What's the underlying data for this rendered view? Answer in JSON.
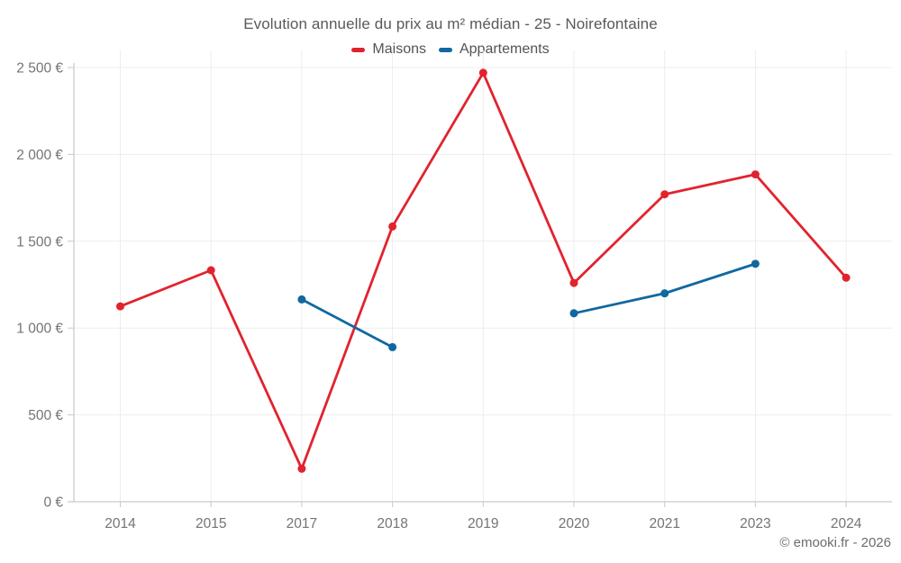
{
  "title": "Evolution annuelle du prix au m² médian - 25 - Noirefontaine",
  "footer": "© emooki.fr - 2026",
  "colors": {
    "maisons": "#e1232e",
    "appartements": "#0f68a0",
    "axis": "#c9c9c9",
    "grid": "#ededed",
    "tick_text": "#747474",
    "title_text": "#595959"
  },
  "chart_data": {
    "type": "line",
    "categories": [
      "2014",
      "2015",
      "2017",
      "2018",
      "2019",
      "2020",
      "2021",
      "2023",
      "2024"
    ],
    "series": [
      {
        "name": "Maisons",
        "color": "#e1232e",
        "values": [
          1125,
          1333,
          190,
          1585,
          2470,
          1260,
          1770,
          1885,
          1290
        ]
      },
      {
        "name": "Appartements",
        "color": "#0f68a0",
        "values": [
          null,
          null,
          1165,
          890,
          null,
          1085,
          1200,
          1370,
          null
        ]
      }
    ],
    "yticks": [
      {
        "value": 0,
        "label": "0 €"
      },
      {
        "value": 500,
        "label": "500 €"
      },
      {
        "value": 1000,
        "label": "1 000 €"
      },
      {
        "value": 1500,
        "label": "1 500 €"
      },
      {
        "value": 2000,
        "label": "2 000 €"
      },
      {
        "value": 2500,
        "label": "2 500 €"
      }
    ],
    "ylim": [
      0,
      2500
    ],
    "grid": true,
    "legend_position": "top",
    "marker_radius": 4.5,
    "line_width": 2.8
  }
}
